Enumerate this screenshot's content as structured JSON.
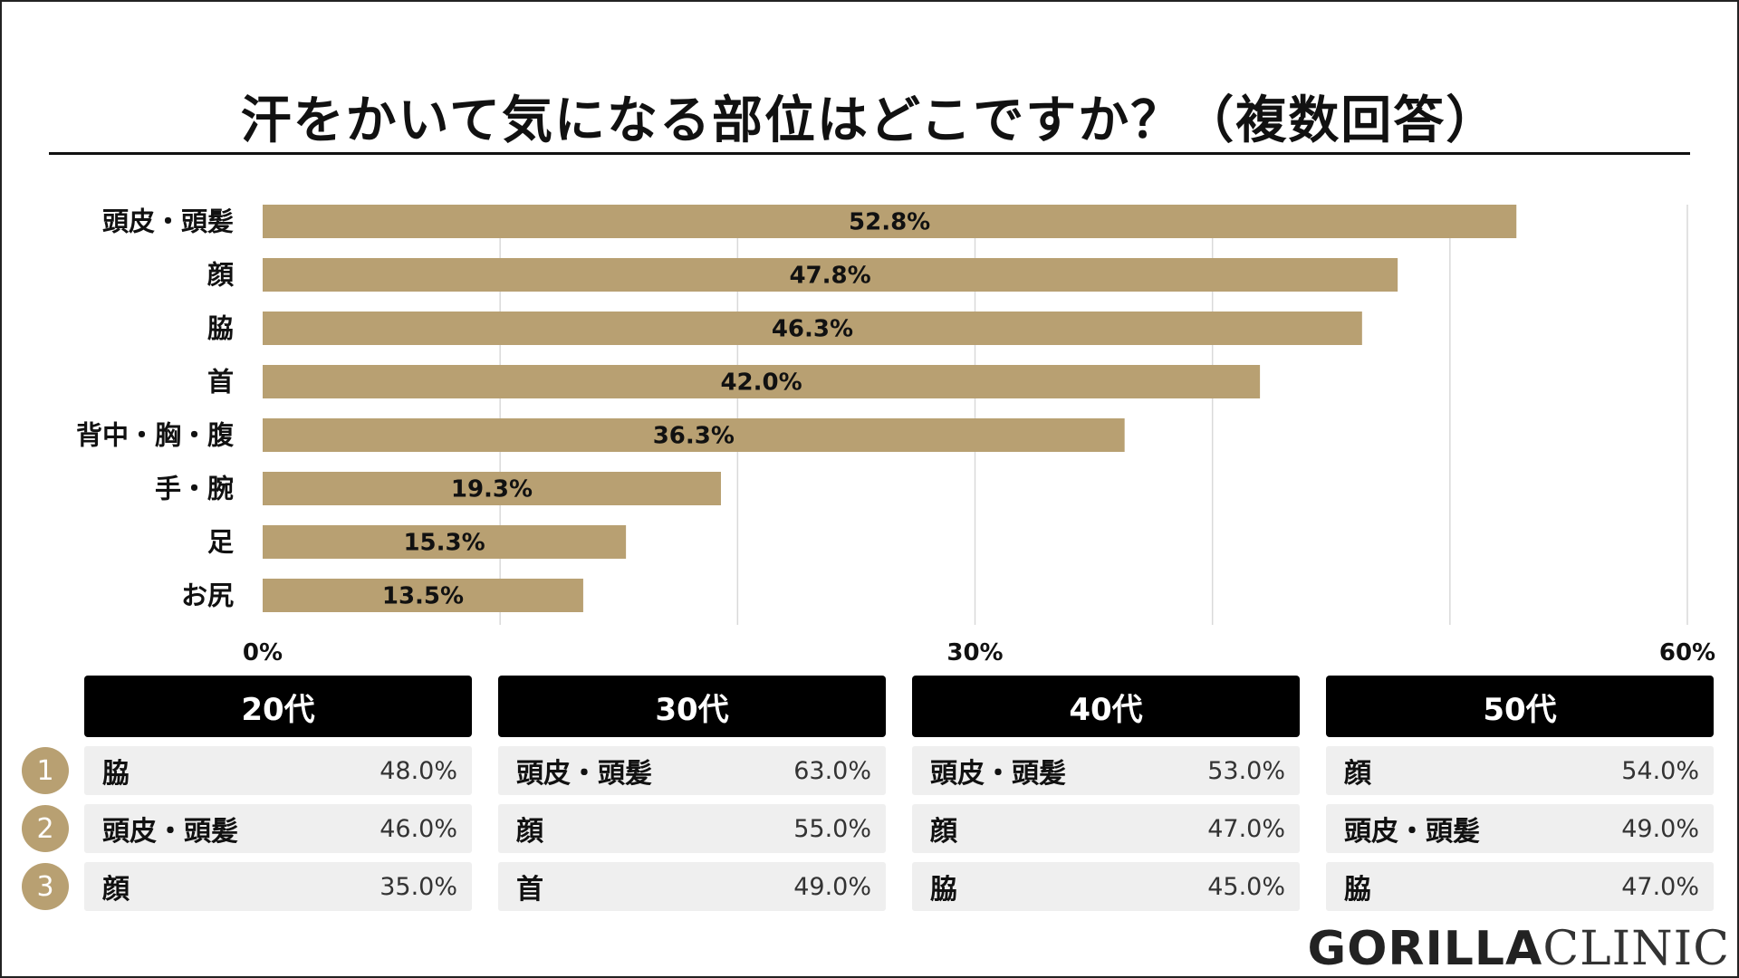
{
  "chart_data": {
    "type": "bar",
    "orientation": "horizontal",
    "title": "汗をかいて気になる部位はどこですか？（複数回答）",
    "categories": [
      "頭皮・頭髪",
      "顔",
      "脇",
      "首",
      "背中・胸・腹",
      "手・腕",
      "足",
      "お尻"
    ],
    "values": [
      52.8,
      47.8,
      46.3,
      42.0,
      36.3,
      19.3,
      15.3,
      13.5
    ],
    "value_labels": [
      "52.8%",
      "47.8%",
      "46.3%",
      "42.0%",
      "36.3%",
      "19.3%",
      "15.3%",
      "13.5%"
    ],
    "xlim": [
      0,
      60
    ],
    "x_ticks": [
      0,
      30,
      60
    ],
    "x_tick_labels": [
      "0%",
      "30%",
      "60%"
    ],
    "grid": true,
    "bar_color": "#b8a072"
  },
  "age_groups": [
    {
      "label": "20代",
      "ranks": [
        {
          "part": "脇",
          "value": "48.0%"
        },
        {
          "part": "頭皮・頭髪",
          "value": "46.0%"
        },
        {
          "part": "顔",
          "value": "35.0%"
        }
      ]
    },
    {
      "label": "30代",
      "ranks": [
        {
          "part": "頭皮・頭髪",
          "value": "63.0%"
        },
        {
          "part": "顔",
          "value": "55.0%"
        },
        {
          "part": "首",
          "value": "49.0%"
        }
      ]
    },
    {
      "label": "40代",
      "ranks": [
        {
          "part": "頭皮・頭髪",
          "value": "53.0%"
        },
        {
          "part": "顔",
          "value": "47.0%"
        },
        {
          "part": "脇",
          "value": "45.0%"
        }
      ]
    },
    {
      "label": "50代",
      "ranks": [
        {
          "part": "顔",
          "value": "54.0%"
        },
        {
          "part": "頭皮・頭髪",
          "value": "49.0%"
        },
        {
          "part": "脇",
          "value": "47.0%"
        }
      ]
    }
  ],
  "rank_numbers": [
    "1",
    "2",
    "3"
  ],
  "logo": {
    "part1": "GORILLA",
    "part2": "CLINIC"
  }
}
